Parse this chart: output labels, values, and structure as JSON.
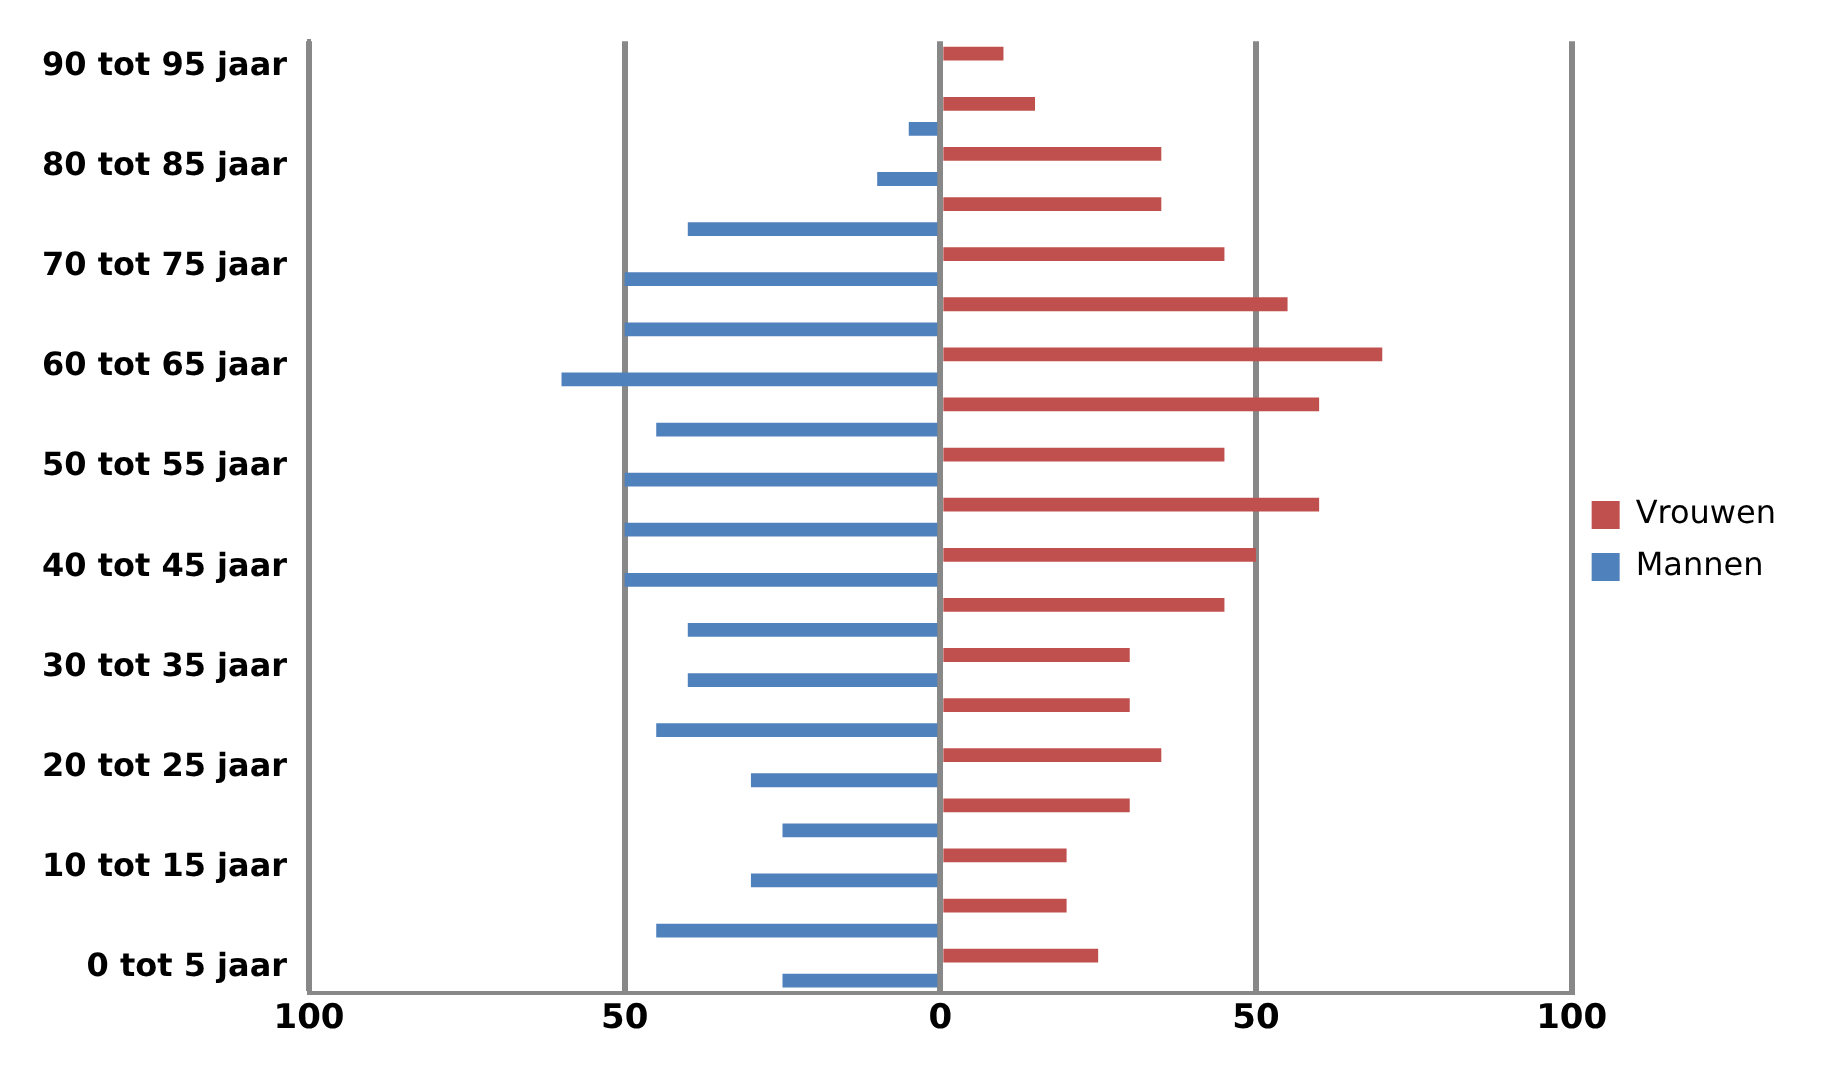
{
  "chart_data": {
    "type": "bar",
    "orientation": "horizontal",
    "categories": [
      "90 tot 95 jaar",
      null,
      "80 tot 85 jaar",
      null,
      "70 tot 75 jaar",
      null,
      "60 tot 65 jaar",
      null,
      "50 tot 55 jaar",
      null,
      "40 tot 45 jaar",
      null,
      "30 tot 35 jaar",
      null,
      "20 tot 25 jaar",
      null,
      "10 tot 15 jaar",
      null,
      "0 tot 5 jaar"
    ],
    "series": [
      {
        "name": "Vrouwen",
        "color": "#c0504d",
        "values": [
          10,
          15,
          35,
          35,
          45,
          55,
          70,
          60,
          45,
          60,
          50,
          45,
          30,
          30,
          35,
          30,
          20,
          20,
          25
        ]
      },
      {
        "name": "Mannen",
        "color": "#4f81bd",
        "values": [
          0,
          -5,
          -10,
          -40,
          -50,
          -50,
          -60,
          -45,
          -50,
          -50,
          -50,
          -40,
          -40,
          -45,
          -30,
          -25,
          -30,
          -45,
          -25
        ]
      }
    ],
    "xlim": [
      -100,
      100
    ],
    "xticks": [
      {
        "value": -100,
        "label": "100"
      },
      {
        "value": -50,
        "label": "50"
      },
      0,
      50,
      100
    ],
    "grid": "x",
    "legend": "right"
  }
}
